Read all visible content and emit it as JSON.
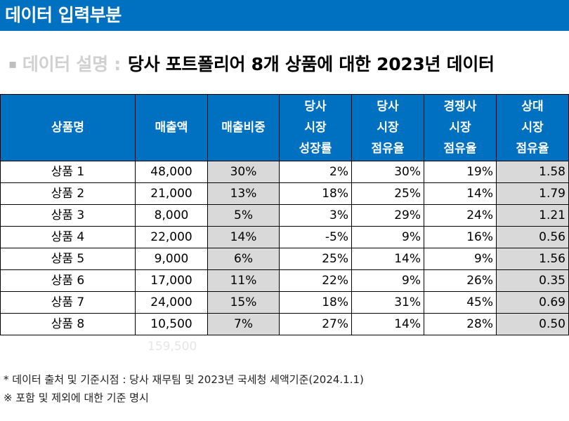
{
  "header": {
    "title": "데이터 입력부분"
  },
  "description": {
    "bullet": "▪",
    "label": "데이터 설명 :",
    "value": "당사 포트폴리어 8개 상품에 대한 2023년 데이터"
  },
  "table": {
    "headers": [
      "상품명",
      "매출액",
      "매출비중",
      "당사\n시장\n성장률",
      "당사\n시장\n점유율",
      "경쟁사\n시장\n점유율",
      "상대\n시장\n점유율"
    ],
    "rows": [
      [
        "상품 1",
        "48,000",
        "30%",
        "2%",
        "30%",
        "19%",
        "1.58"
      ],
      [
        "상품 2",
        "21,000",
        "13%",
        "18%",
        "25%",
        "14%",
        "1.79"
      ],
      [
        "상품 3",
        "8,000",
        "5%",
        "3%",
        "29%",
        "24%",
        "1.21"
      ],
      [
        "상품 4",
        "22,000",
        "14%",
        "-5%",
        "9%",
        "16%",
        "0.56"
      ],
      [
        "상품 5",
        "9,000",
        "6%",
        "25%",
        "14%",
        "9%",
        "1.56"
      ],
      [
        "상품 6",
        "17,000",
        "11%",
        "22%",
        "9%",
        "26%",
        "0.35"
      ],
      [
        "상품 7",
        "24,000",
        "15%",
        "18%",
        "31%",
        "45%",
        "0.69"
      ],
      [
        "상품 8",
        "10,500",
        "7%",
        "27%",
        "14%",
        "28%",
        "0.50"
      ]
    ],
    "total_sales": "159,500"
  },
  "notes": {
    "source": "* 데이터 출처 및 기준시점 : 당사 재무팀 및 2023년 국세청 세액기준(2024.1.1)",
    "criteria": "※ 포함 및 제외에 대한 기준 명시"
  },
  "colors": {
    "header_blue": "#0070C0",
    "shade_gray": "#d9d9d9"
  }
}
